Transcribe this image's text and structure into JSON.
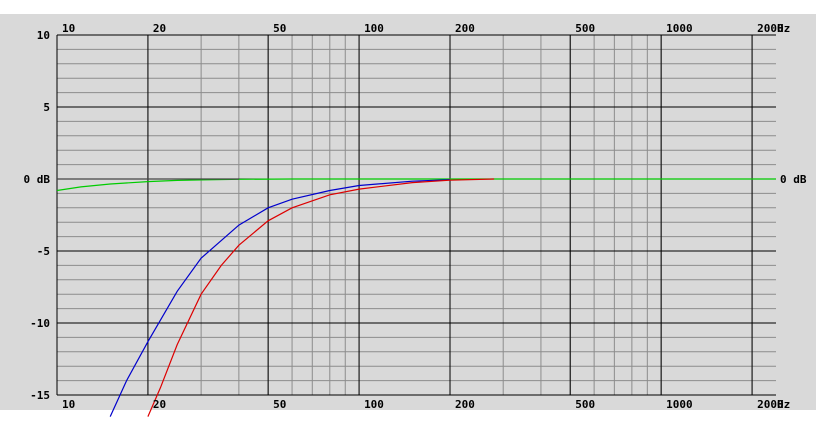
{
  "chart_data": {
    "type": "line",
    "title": "",
    "x_scale": "log",
    "xlim": [
      10,
      2400
    ],
    "ylim": [
      -15,
      10
    ],
    "grid": true,
    "x_tick_labels": [
      {
        "value": 10,
        "label": "10"
      },
      {
        "value": 20,
        "label": "20"
      },
      {
        "value": 50,
        "label": "50"
      },
      {
        "value": 100,
        "label": "100"
      },
      {
        "value": 200,
        "label": "200"
      },
      {
        "value": 500,
        "label": "500"
      },
      {
        "value": 1000,
        "label": "1000"
      },
      {
        "value": 2000,
        "label": "2000"
      }
    ],
    "x_unit": "Hz",
    "y_tick_labels": [
      {
        "value": 10,
        "label": "10"
      },
      {
        "value": 5,
        "label": "5"
      },
      {
        "value": 0,
        "label": "0 dB"
      },
      {
        "value": -5,
        "label": "-5"
      },
      {
        "value": -10,
        "label": "-10"
      },
      {
        "value": -15,
        "label": "-15"
      }
    ],
    "right_label": {
      "value": 0,
      "label": "0 dB"
    },
    "series": [
      {
        "color": "#00cc00",
        "x": [
          10,
          12,
          15,
          20,
          25,
          30,
          40,
          60,
          100,
          200,
          500,
          1000,
          2400
        ],
        "y": [
          -0.8,
          -0.55,
          -0.35,
          -0.18,
          -0.1,
          -0.06,
          -0.02,
          0,
          0,
          0,
          0,
          0,
          0
        ]
      },
      {
        "color": "#0000cc",
        "x": [
          15,
          17,
          20,
          25,
          30,
          40,
          50,
          60,
          80,
          100,
          150,
          200
        ],
        "y": [
          -16.5,
          -14,
          -11.3,
          -7.8,
          -5.5,
          -3.2,
          -2.0,
          -1.4,
          -0.8,
          -0.45,
          -0.15,
          -0.05
        ]
      },
      {
        "color": "#dd0000",
        "x": [
          20,
          22,
          25,
          30,
          35,
          40,
          50,
          60,
          80,
          100,
          150,
          200,
          280
        ],
        "y": [
          -16.5,
          -14.5,
          -11.5,
          -8.0,
          -6.0,
          -4.6,
          -2.9,
          -2.0,
          -1.1,
          -0.7,
          -0.25,
          -0.08,
          0
        ]
      },
      {
        "color": "#444444",
        "x": [
          10,
          40
        ],
        "y": [
          0,
          0
        ]
      }
    ]
  }
}
